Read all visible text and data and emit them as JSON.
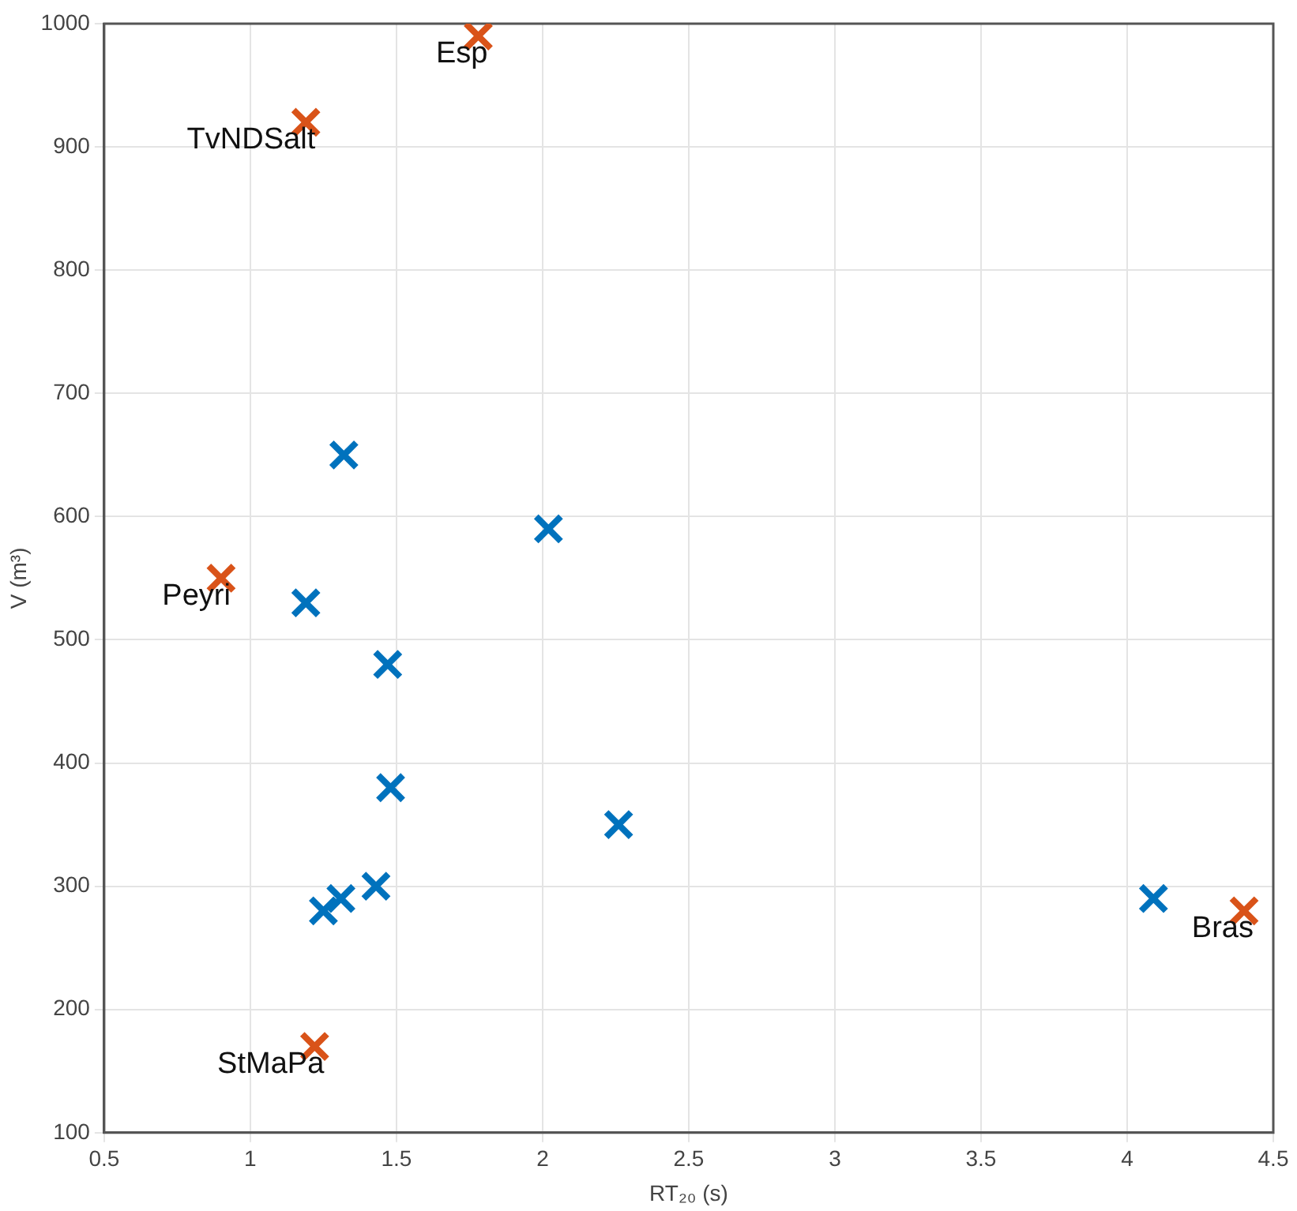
{
  "chart_data": {
    "type": "scatter",
    "xlabel": "RT₂₀ (s)",
    "ylabel": "V (m³)",
    "xlim": [
      0.5,
      4.5
    ],
    "ylim": [
      100,
      1000
    ],
    "xticks": [
      0.5,
      1,
      1.5,
      2,
      2.5,
      3,
      3.5,
      4,
      4.5
    ],
    "yticks": [
      100,
      200,
      300,
      400,
      500,
      600,
      700,
      800,
      900,
      1000
    ],
    "grid": true,
    "legend": false,
    "marker": "cross",
    "series": [
      {
        "color": "#0072bd",
        "x": [
          1.32,
          2.02,
          1.19,
          1.47,
          1.48,
          2.26,
          4.09,
          1.25,
          1.31,
          1.43
        ],
        "values": [
          650,
          590,
          530,
          480,
          380,
          350,
          290,
          280,
          290,
          300
        ]
      },
      {
        "color": "#d95319",
        "x": [
          1.78,
          1.19,
          0.9,
          1.22,
          4.4
        ],
        "values": [
          990,
          920,
          550,
          170,
          280
        ]
      }
    ],
    "annotations": [
      {
        "text": "Esp",
        "x": 1.78,
        "y": 990
      },
      {
        "text": "TvNDSalt",
        "x": 1.19,
        "y": 920
      },
      {
        "text": "Peyri",
        "x": 0.9,
        "y": 550
      },
      {
        "text": "StMaPa",
        "x": 1.22,
        "y": 170
      },
      {
        "text": "Bras",
        "x": 4.4,
        "y": 280
      }
    ]
  }
}
